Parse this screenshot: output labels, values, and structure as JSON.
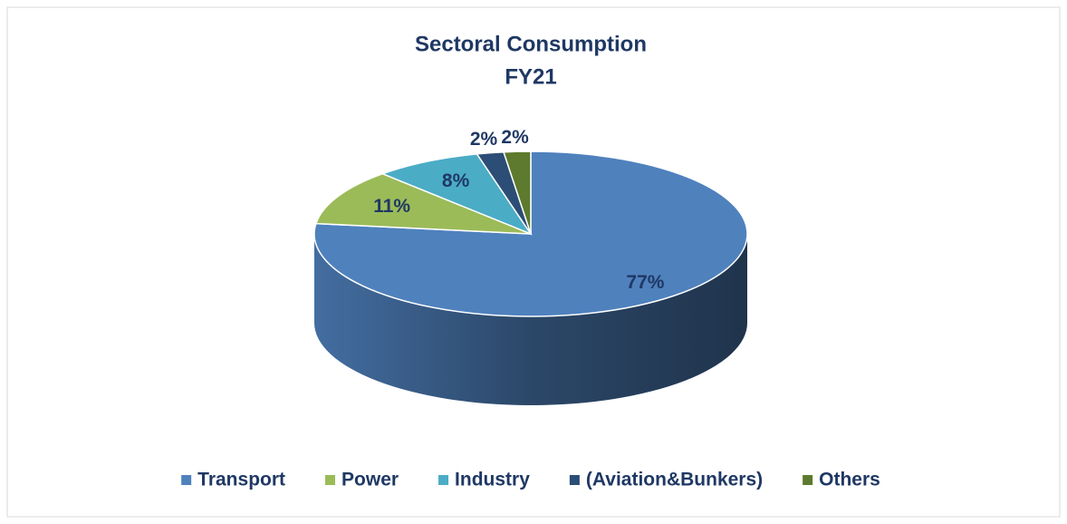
{
  "chart_data": {
    "type": "pie",
    "title": "Sectoral Consumption",
    "subtitle": "FY21",
    "categories": [
      "Transport",
      "Power",
      "Industry",
      "(Aviation&Bunkers)",
      "Others"
    ],
    "values": [
      77,
      11,
      8,
      2,
      2
    ],
    "value_labels": [
      "77%",
      "11%",
      "8%",
      "2%",
      "2%"
    ],
    "colors": [
      "#4f81bd",
      "#9bbb59",
      "#4bacc6",
      "#2c4d75",
      "#5e7a2e"
    ],
    "legend": "bottom"
  }
}
